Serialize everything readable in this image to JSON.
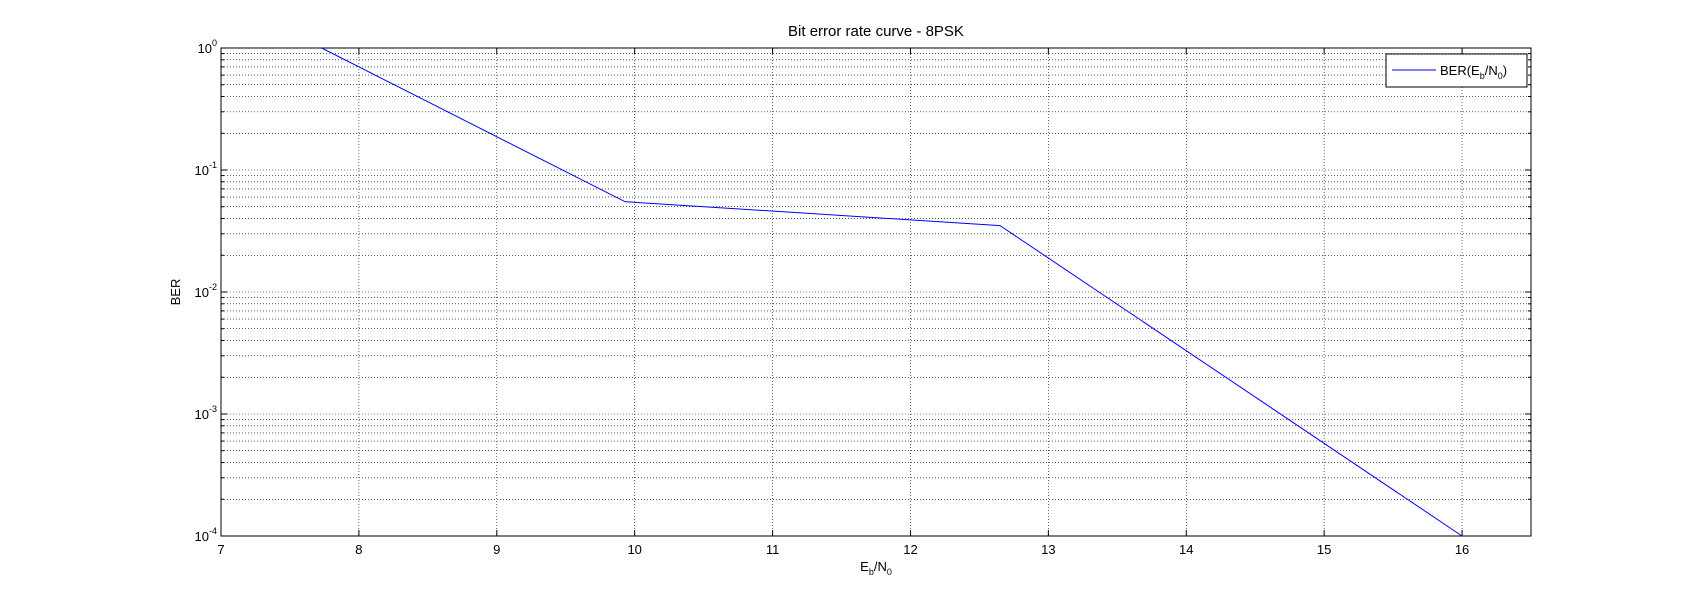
{
  "chart_data": {
    "type": "line",
    "title": "Bit error rate curve - 8PSK",
    "xlabel": {
      "main": "E",
      "sub1": "b",
      "mid": "/N",
      "sub2": "0"
    },
    "ylabel": "BER",
    "xlim": [
      7,
      16.5
    ],
    "ylim": [
      0.0001,
      1
    ],
    "yscale": "log",
    "grid": true,
    "legend_position": "top-right",
    "x_ticks": [
      "7",
      "8",
      "9",
      "10",
      "11",
      "12",
      "13",
      "14",
      "15",
      "16"
    ],
    "y_ticks": [
      {
        "base": "10",
        "exp": "-4",
        "value": 0.0001
      },
      {
        "base": "10",
        "exp": "-3",
        "value": 0.001
      },
      {
        "base": "10",
        "exp": "-2",
        "value": 0.01
      },
      {
        "base": "10",
        "exp": "-1",
        "value": 0.1
      },
      {
        "base": "10",
        "exp": "0",
        "value": 1
      }
    ],
    "series": [
      {
        "legend": {
          "main": "BER(E",
          "sub1": "b",
          "mid": "/N",
          "sub2": "0",
          "close": ")"
        },
        "color": "#0000ff",
        "x": [
          7.73,
          9.93,
          12.65,
          16.0
        ],
        "y": [
          1.0,
          0.055,
          0.035,
          0.0001
        ]
      }
    ]
  }
}
